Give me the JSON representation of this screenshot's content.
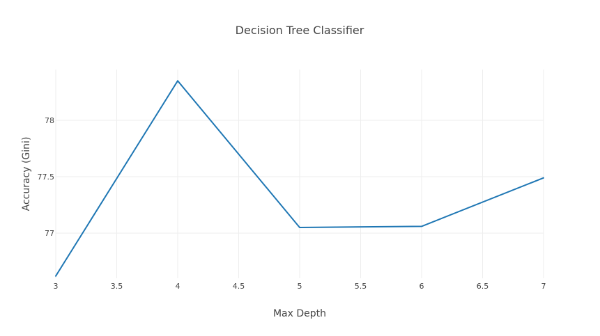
{
  "chart_data": {
    "type": "line",
    "title": "Decision Tree Classifier",
    "xlabel": "Max Depth",
    "ylabel": "Accuracy (Gini)",
    "xlim": [
      3,
      7
    ],
    "ylim": [
      76.6,
      78.45
    ],
    "x_ticks": [
      3,
      3.5,
      4,
      4.5,
      5,
      5.5,
      6,
      6.5,
      7
    ],
    "x_tick_labels": [
      "3",
      "3.5",
      "4",
      "4.5",
      "5",
      "5.5",
      "6",
      "6.5",
      "7"
    ],
    "y_ticks": [
      77,
      77.5,
      78
    ],
    "y_tick_labels": [
      "77",
      "77.5",
      "78"
    ],
    "grid": true,
    "series": [
      {
        "x": [
          3,
          4,
          5,
          6,
          7
        ],
        "y": [
          76.62,
          78.35,
          77.05,
          77.06,
          77.49
        ],
        "color": "#1f77b4"
      }
    ]
  }
}
